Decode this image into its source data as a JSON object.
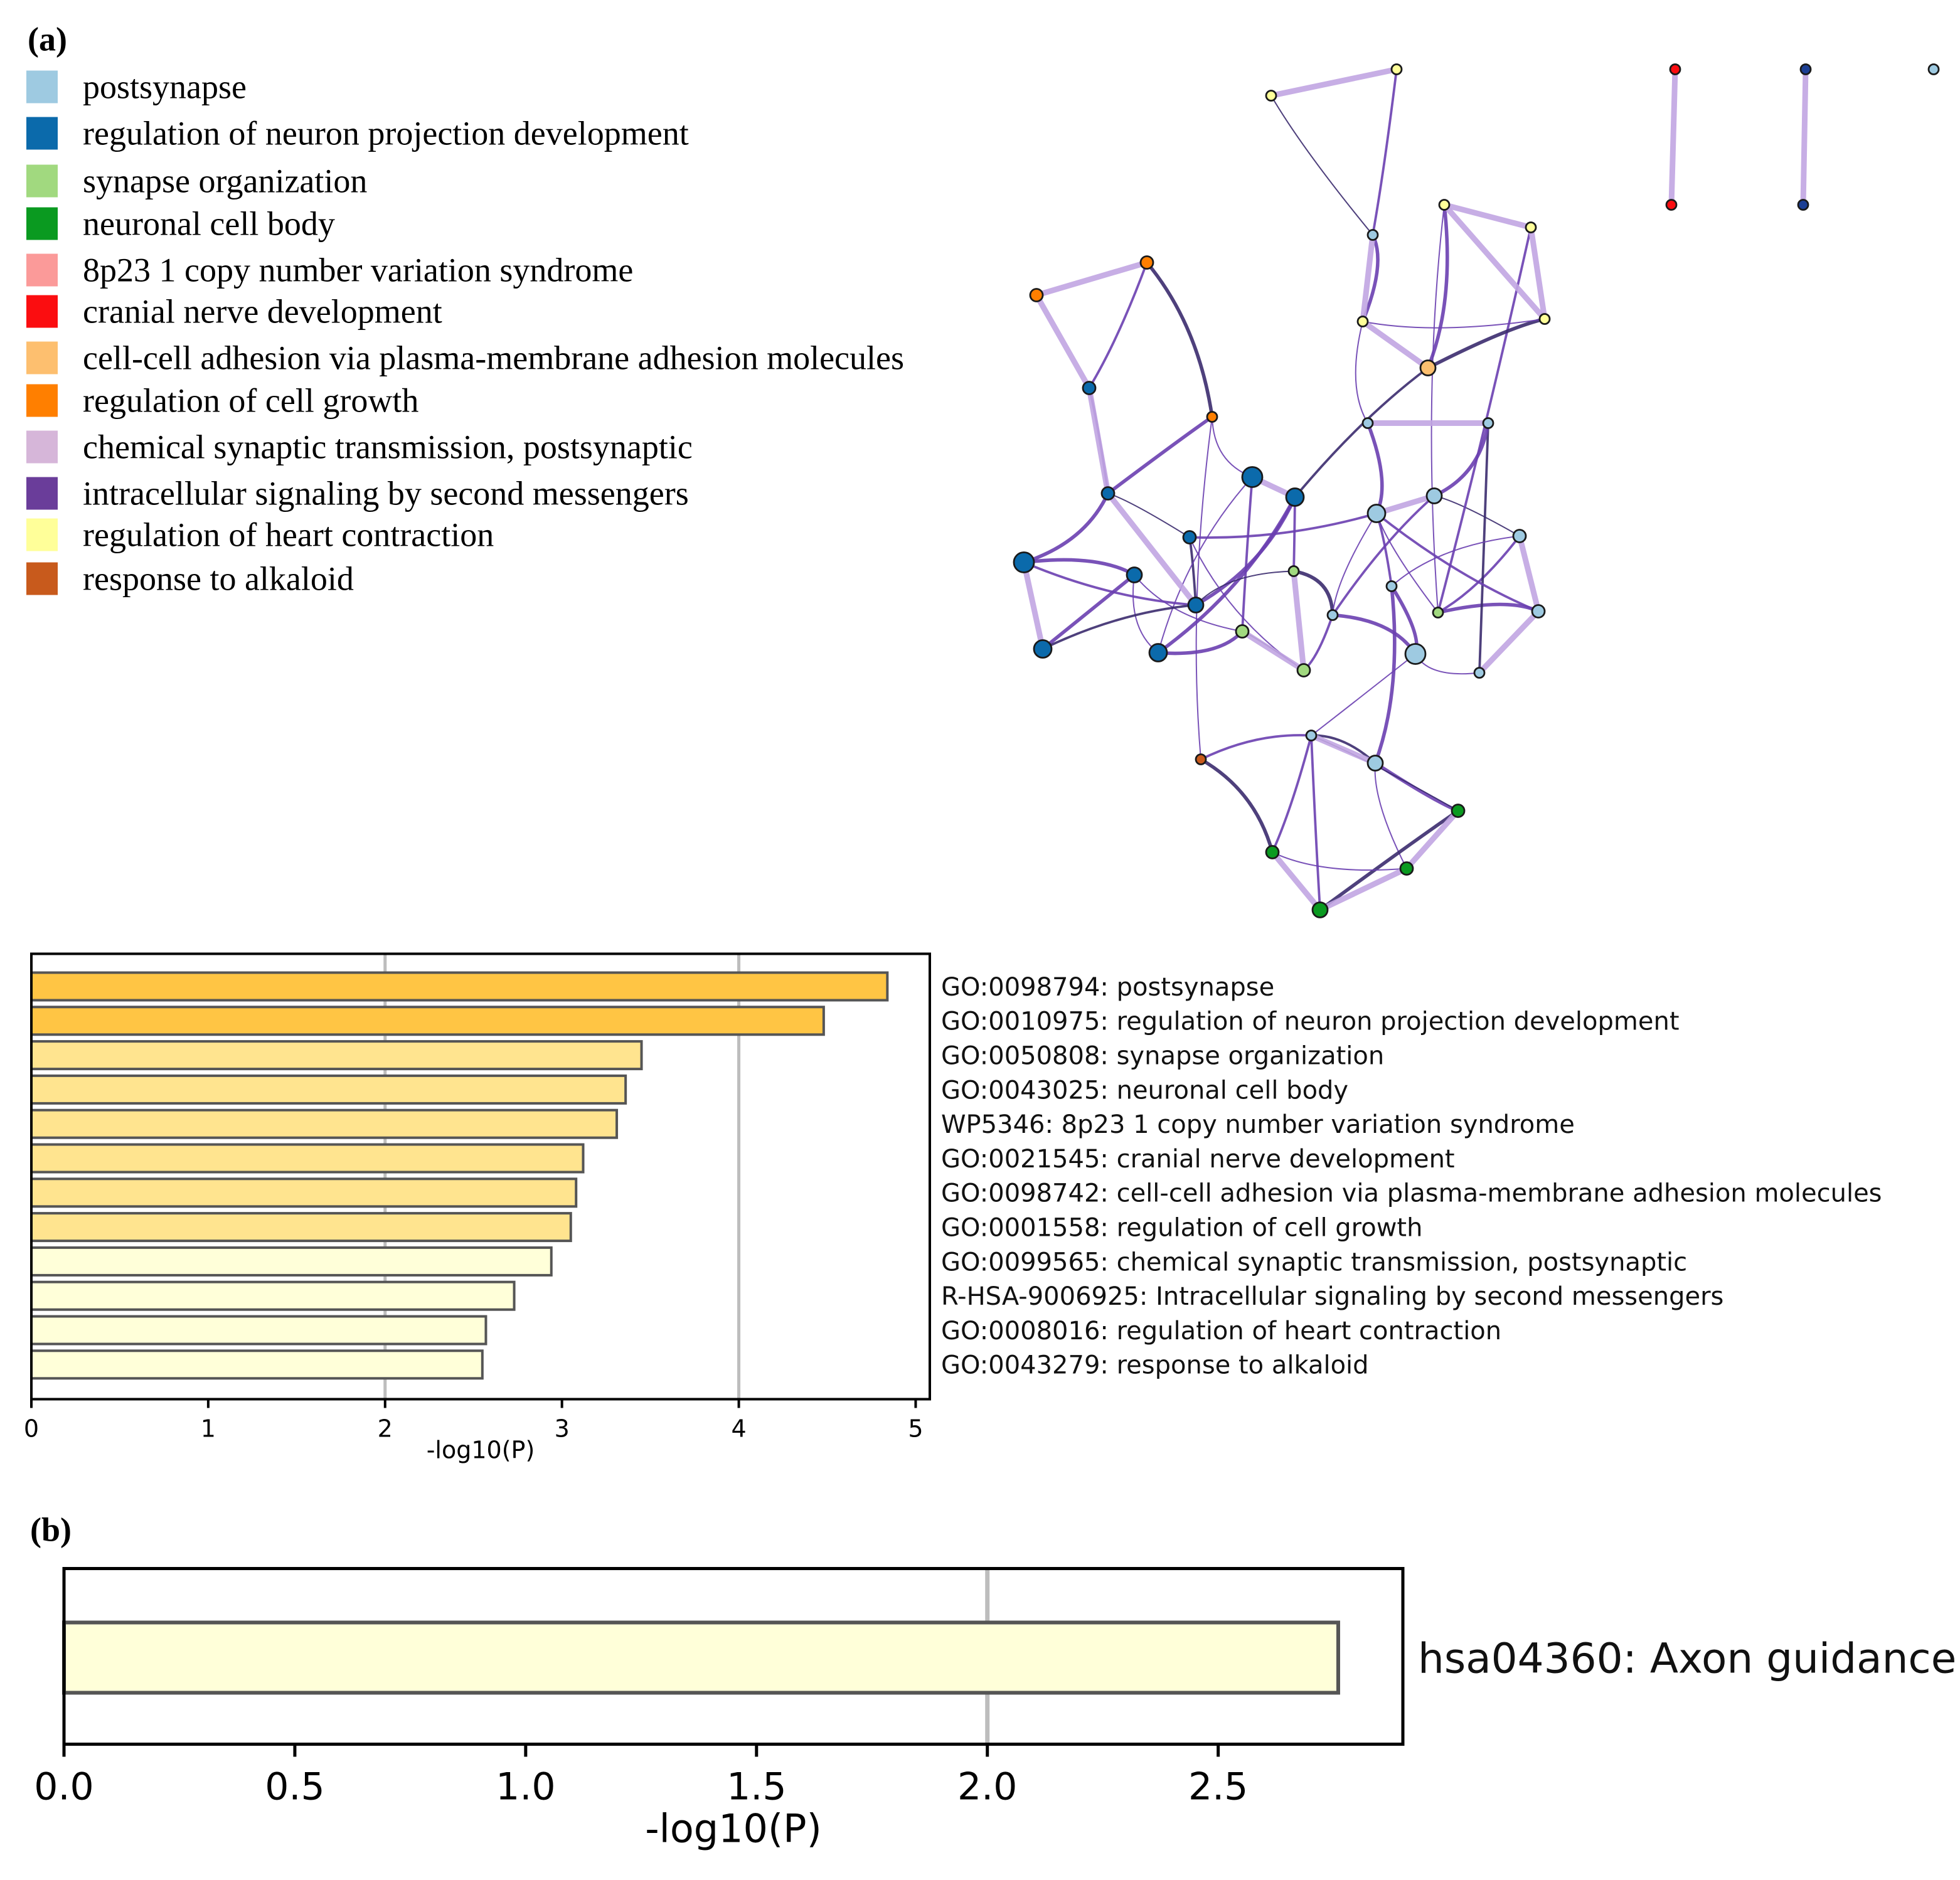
{
  "panel_a_label": "(a)",
  "panel_b_label": "(b)",
  "legend": [
    {
      "label": "postsynapse",
      "color": "#9ecae1"
    },
    {
      "label": "regulation of neuron projection development",
      "color": "#0b6aab"
    },
    {
      "label": "synapse organization",
      "color": "#a1d97f"
    },
    {
      "label": "neuronal cell body",
      "color": "#0a9a20"
    },
    {
      "label": "8p23 1 copy number variation syndrome",
      "color": "#fb9a99"
    },
    {
      "label": "cranial nerve development",
      "color": "#fb0d10"
    },
    {
      "label": "cell-cell adhesion via plasma-membrane adhesion molecules",
      "color": "#fdbf6f"
    },
    {
      "label": "regulation of cell growth",
      "color": "#ff7f00"
    },
    {
      "label": "chemical synaptic transmission, postsynaptic",
      "color": "#d6b6d9"
    },
    {
      "label": "intracellular signaling by second messengers",
      "color": "#6a3d9a"
    },
    {
      "label": "regulation of heart contraction",
      "color": "#ffff99"
    },
    {
      "label": "response to alkaloid",
      "color": "#c85a1c"
    }
  ],
  "chart_data": [
    {
      "type": "bar",
      "orientation": "horizontal",
      "categories": [
        "GO:0098794: postsynapse",
        "GO:0010975: regulation of neuron projection development",
        "GO:0050808: synapse organization",
        "GO:0043025: neuronal cell body",
        "WP5346: 8p23 1 copy number variation syndrome",
        "GO:0021545: cranial nerve development",
        "GO:0098742: cell-cell adhesion via plasma-membrane adhesion molecules",
        "GO:0001558: regulation of cell growth",
        "GO:0099565: chemical synaptic transmission, postsynaptic",
        "R-HSA-9006925: Intracellular signaling by second messengers",
        "GO:0008016: regulation of heart contraction",
        "GO:0043279: response to alkaloid"
      ],
      "values": [
        4.84,
        4.48,
        3.45,
        3.36,
        3.31,
        3.12,
        3.08,
        3.05,
        2.94,
        2.73,
        2.57,
        2.55
      ],
      "bar_colors": [
        "#ffc544",
        "#ffc544",
        "#ffe48f",
        "#ffe48f",
        "#ffe48f",
        "#ffe48f",
        "#ffe48f",
        "#ffe48f",
        "#ffffd9",
        "#ffffd9",
        "#ffffd9",
        "#ffffd9"
      ],
      "xlabel": "-log10(P)",
      "xticks": [
        "0",
        "1",
        "2",
        "3",
        "4",
        "5"
      ],
      "xlim": [
        0,
        5.08
      ],
      "gridlines": [
        2,
        4
      ]
    },
    {
      "type": "bar",
      "orientation": "horizontal",
      "categories": [
        "hsa04360: Axon guidance"
      ],
      "values": [
        2.76
      ],
      "bar_colors": [
        "#ffffd9"
      ],
      "xlabel": "-log10(P)",
      "xticks": [
        "0.0",
        "0.5",
        "1.0",
        "1.5",
        "2.0",
        "2.5"
      ],
      "xlim": [
        0,
        2.9
      ],
      "gridlines": [
        2
      ]
    }
  ]
}
